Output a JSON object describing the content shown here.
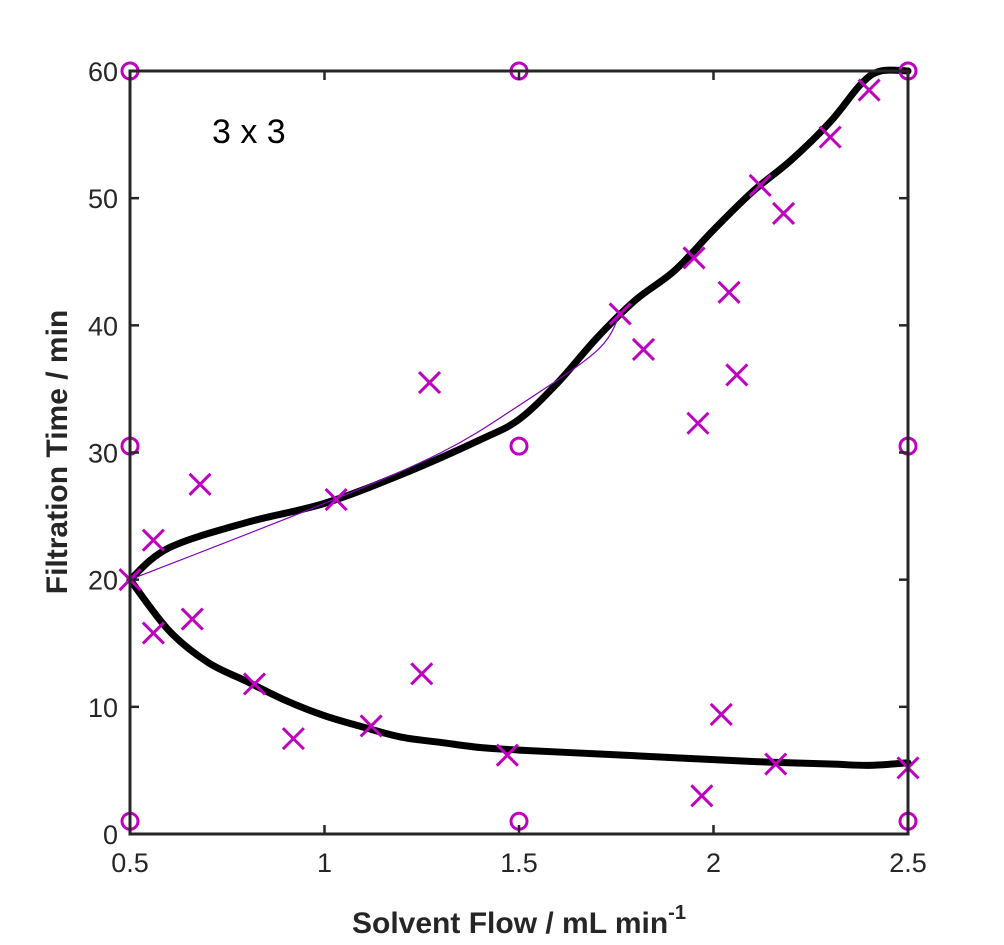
{
  "chart_data": {
    "type": "scatter",
    "title": "",
    "annotation": "3 x 3",
    "xlabel": "Solvent Flow / mL min",
    "xlabel_superscript": "-1",
    "ylabel": "Filtration Time / min",
    "xlim": [
      0.5,
      2.5
    ],
    "ylim": [
      0,
      60
    ],
    "xticks": [
      0.5,
      1,
      1.5,
      2,
      2.5
    ],
    "yticks": [
      0,
      10,
      20,
      30,
      40,
      50,
      60
    ],
    "xtick_labels": [
      "0.5",
      "1",
      "1.5",
      "2",
      "2.5"
    ],
    "ytick_labels": [
      "0",
      "10",
      "20",
      "30",
      "40",
      "50",
      "60"
    ],
    "grid": false,
    "legend": "none",
    "colors": {
      "markers": "#c000c0",
      "boundary": "#000000",
      "thin_line": "#8000c0",
      "axes": "#262626"
    },
    "series": [
      {
        "marker": "o",
        "points": [
          [
            0.5,
            60
          ],
          [
            1.5,
            60
          ],
          [
            2.5,
            60
          ],
          [
            0.5,
            30.5
          ],
          [
            1.5,
            30.5
          ],
          [
            2.5,
            30.5
          ],
          [
            0.5,
            1
          ],
          [
            1.5,
            1
          ],
          [
            2.5,
            1
          ]
        ]
      },
      {
        "marker": "x",
        "points": [
          [
            0.5,
            20
          ],
          [
            0.56,
            23.1
          ],
          [
            0.56,
            15.8
          ],
          [
            0.66,
            16.9
          ],
          [
            0.68,
            27.5
          ],
          [
            0.82,
            11.8
          ],
          [
            0.92,
            7.5
          ],
          [
            1.03,
            26.3
          ],
          [
            1.12,
            8.5
          ],
          [
            1.25,
            12.6
          ],
          [
            1.27,
            35.5
          ],
          [
            1.47,
            6.2
          ],
          [
            1.76,
            40.9
          ],
          [
            1.82,
            38.1
          ],
          [
            1.95,
            45.3
          ],
          [
            1.96,
            32.3
          ],
          [
            1.97,
            3.0
          ],
          [
            2.02,
            9.4
          ],
          [
            2.04,
            42.6
          ],
          [
            2.06,
            36.1
          ],
          [
            2.12,
            51.0
          ],
          [
            2.16,
            5.5
          ],
          [
            2.18,
            48.8
          ],
          [
            2.3,
            54.8
          ],
          [
            2.4,
            58.5
          ],
          [
            2.5,
            5.2
          ]
        ]
      }
    ],
    "curves": [
      {
        "style": "thick",
        "points": [
          [
            0.5,
            20
          ],
          [
            0.6,
            22.5
          ],
          [
            0.8,
            24.5
          ],
          [
            1.0,
            26.0
          ],
          [
            1.2,
            28.3
          ],
          [
            1.4,
            31.0
          ],
          [
            1.5,
            32.6
          ],
          [
            1.6,
            35.5
          ],
          [
            1.7,
            39.0
          ],
          [
            1.8,
            42.0
          ],
          [
            1.9,
            44.3
          ],
          [
            2.0,
            47.5
          ],
          [
            2.1,
            50.5
          ],
          [
            2.2,
            53.0
          ],
          [
            2.3,
            56.0
          ],
          [
            2.38,
            59.0
          ],
          [
            2.43,
            60
          ],
          [
            2.5,
            60
          ]
        ]
      },
      {
        "style": "thin",
        "points": [
          [
            0.5,
            20
          ],
          [
            1.0,
            26.0
          ],
          [
            1.3,
            30.0
          ],
          [
            1.5,
            33.7
          ],
          [
            1.7,
            38.0
          ],
          [
            1.76,
            40.9
          ]
        ]
      },
      {
        "style": "thick",
        "points": [
          [
            0.5,
            20
          ],
          [
            0.6,
            16.0
          ],
          [
            0.7,
            13.5
          ],
          [
            0.8,
            12.0
          ],
          [
            0.9,
            10.5
          ],
          [
            1.0,
            9.3
          ],
          [
            1.1,
            8.4
          ],
          [
            1.2,
            7.6
          ],
          [
            1.3,
            7.2
          ],
          [
            1.4,
            6.8
          ],
          [
            1.5,
            6.6
          ],
          [
            1.7,
            6.3
          ],
          [
            1.9,
            6.0
          ],
          [
            2.1,
            5.7
          ],
          [
            2.3,
            5.5
          ],
          [
            2.4,
            5.4
          ],
          [
            2.5,
            5.6
          ]
        ]
      }
    ]
  }
}
